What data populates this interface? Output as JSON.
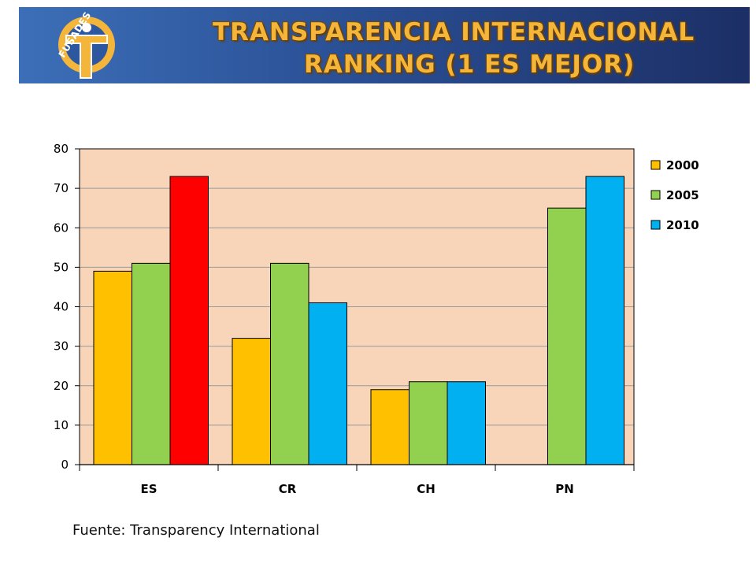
{
  "header": {
    "logo_text": "FUSADES",
    "title_line1": "TRANSPARENCIA  INTERNACIONAL",
    "title_line2": "RANKING (1 ES MEJOR)"
  },
  "colors": {
    "bar_2000": "#FFC000",
    "bar_2005": "#92D050",
    "bar_2010": "#00B0F0",
    "highlight_es_2010": "#FF0000",
    "plot_background": "#F8D5B8"
  },
  "chart_data": {
    "type": "bar",
    "categories": [
      "ES",
      "CR",
      "CH",
      "PN"
    ],
    "series": [
      {
        "name": "2000",
        "values": [
          49,
          32,
          19,
          null
        ]
      },
      {
        "name": "2005",
        "values": [
          51,
          51,
          21,
          65
        ]
      },
      {
        "name": "2010",
        "values": [
          73,
          41,
          21,
          73
        ]
      }
    ],
    "ylim": [
      0,
      80
    ],
    "yticks": [
      "0",
      "10",
      "20",
      "30",
      "40",
      "50",
      "60",
      "70",
      "80"
    ],
    "grid": true,
    "legend": "right"
  },
  "footer": {
    "source": "Fuente: Transparency International"
  }
}
